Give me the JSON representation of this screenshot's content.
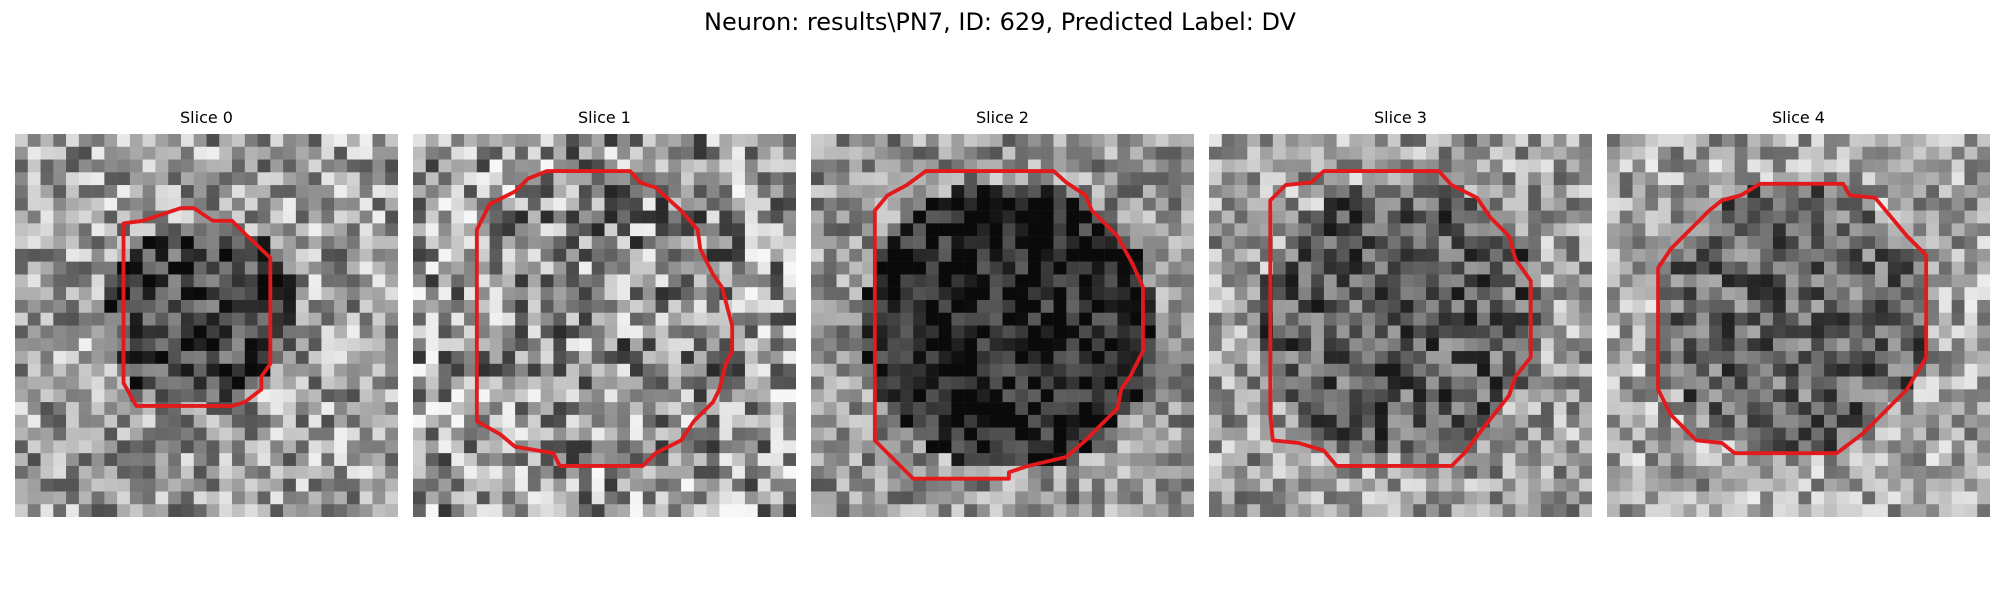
{
  "figure": {
    "title": "Neuron: results\\PN7, ID: 629, Predicted Label: DV"
  },
  "colors": {
    "contour": "#e31a1c",
    "background": "#ffffff"
  },
  "panels": [
    {
      "title": "Slice 0"
    },
    {
      "title": "Slice 1"
    },
    {
      "title": "Slice 2"
    },
    {
      "title": "Slice 3"
    },
    {
      "title": "Slice 4"
    }
  ]
}
